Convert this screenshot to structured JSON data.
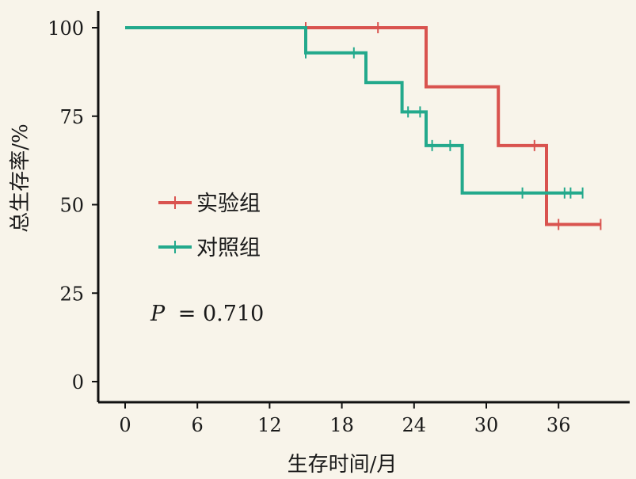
{
  "chart_data": {
    "type": "line",
    "step": true,
    "title": "",
    "xlabel": "生存时间/月",
    "ylabel": "总生存率/%",
    "xticks": [
      0,
      6,
      12,
      18,
      24,
      30,
      36
    ],
    "yticks": [
      0,
      25,
      50,
      75,
      100
    ],
    "xlim": [
      -2,
      42
    ],
    "ylim": [
      -5,
      105
    ],
    "grid": false,
    "legend_position": "middle-left",
    "annotation": {
      "label": "P",
      "text": "= 0.710"
    },
    "series": [
      {
        "name": "实验组",
        "color": "#d9534f",
        "steps": [
          [
            0,
            100
          ],
          [
            25,
            100
          ],
          [
            25,
            83.3
          ],
          [
            31,
            83.3
          ],
          [
            31,
            66.7
          ],
          [
            35,
            66.7
          ],
          [
            35,
            44.4
          ],
          [
            39.5,
            44.4
          ]
        ],
        "censored": [
          [
            15,
            100
          ],
          [
            21,
            100
          ],
          [
            34,
            66.7
          ],
          [
            36,
            44.4
          ],
          [
            39.5,
            44.4
          ]
        ]
      },
      {
        "name": "对照组",
        "color": "#23a98c",
        "steps": [
          [
            0,
            100
          ],
          [
            15,
            100
          ],
          [
            15,
            92.9
          ],
          [
            20,
            92.9
          ],
          [
            20,
            84.5
          ],
          [
            23,
            84.5
          ],
          [
            23,
            76.2
          ],
          [
            25,
            76.2
          ],
          [
            25,
            66.7
          ],
          [
            28,
            66.7
          ],
          [
            28,
            53.3
          ],
          [
            38,
            53.3
          ]
        ],
        "censored": [
          [
            15,
            92.9
          ],
          [
            19,
            92.9
          ],
          [
            23.5,
            76.2
          ],
          [
            24.5,
            76.2
          ],
          [
            25.5,
            66.7
          ],
          [
            27,
            66.7
          ],
          [
            33,
            53.3
          ],
          [
            36.5,
            53.3
          ],
          [
            37,
            53.3
          ],
          [
            38,
            53.3
          ]
        ]
      }
    ]
  }
}
